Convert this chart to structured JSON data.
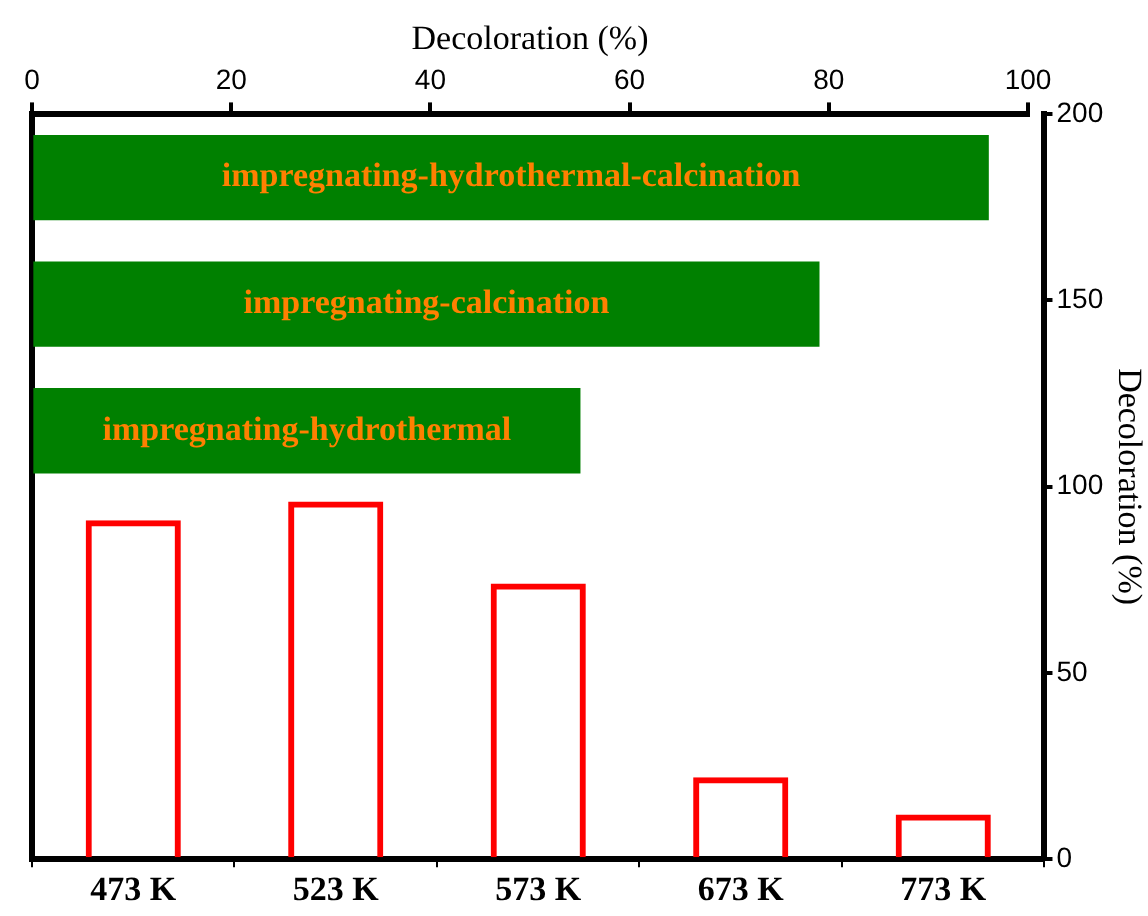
{
  "chart_data": [
    {
      "type": "bar",
      "orientation": "horizontal",
      "xlabel": "Decoloration (%)",
      "categories": [
        "impregnating-hydrothermal-calcination",
        "impregnating-calcination",
        "impregnating-hydrothermal"
      ],
      "values": [
        96,
        79,
        55
      ],
      "color": "#008000",
      "xlim": [
        0,
        100
      ],
      "xticks": [
        0,
        20,
        40,
        60,
        80,
        100
      ]
    },
    {
      "type": "bar",
      "ylabel": "Decoloration (%)",
      "categories": [
        "473 K",
        "523 K",
        "573 K",
        "673 K",
        "773 K"
      ],
      "values": [
        91,
        96,
        74,
        22,
        12
      ],
      "color": "#ff0000",
      "ylim": [
        0,
        200
      ],
      "yticks": [
        0,
        50,
        100,
        150,
        200
      ]
    }
  ]
}
